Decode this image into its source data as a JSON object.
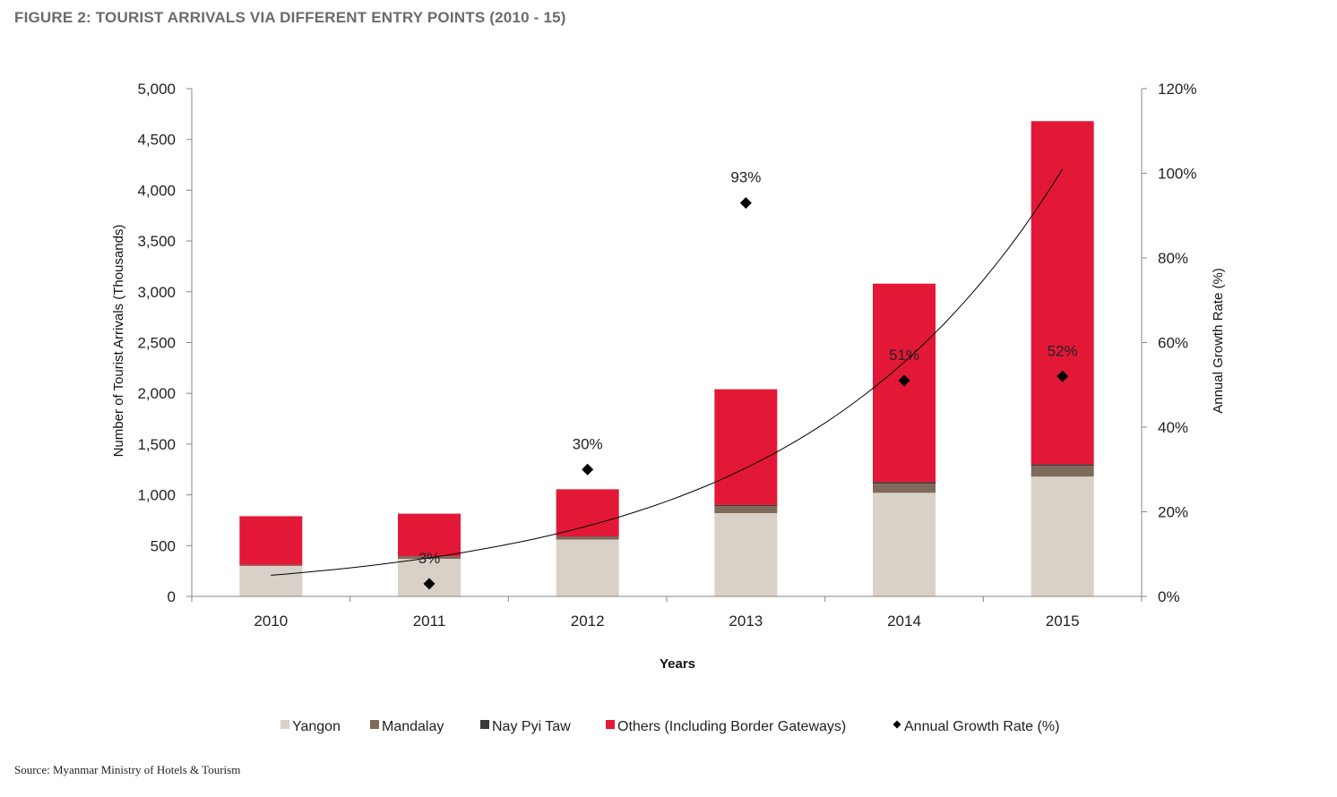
{
  "title": "FIGURE 2: TOURIST ARRIVALS VIA DIFFERENT ENTRY POINTS (2010 - 15)",
  "source": "Source: Myanmar Ministry of Hotels & Tourism",
  "chart_data": {
    "type": "bar",
    "stacked": true,
    "categories": [
      "2010",
      "2011",
      "2012",
      "2013",
      "2014",
      "2015"
    ],
    "xlabel": "Years",
    "ylabel": "Number of Tourist Arrivals (Thousands)",
    "ylabel_right": "Annual Growth Rate (%)",
    "ylim": [
      0,
      5000
    ],
    "ylim_right": [
      0,
      120
    ],
    "yticks": [
      "0",
      "500",
      "1,000",
      "1,500",
      "2,000",
      "2,500",
      "3,000",
      "3,500",
      "4,000",
      "4,500",
      "5,000"
    ],
    "yticks_right": [
      "0%",
      "20%",
      "40%",
      "60%",
      "80%",
      "100%",
      "120%"
    ],
    "grid": false,
    "legend_position": "bottom",
    "series": [
      {
        "name": "Yangon",
        "color": "#d9d1c7",
        "values": [
          300,
          370,
          560,
          820,
          1020,
          1180
        ]
      },
      {
        "name": "Mandalay",
        "color": "#7f6a5a",
        "values": [
          8,
          20,
          25,
          70,
          90,
          105
        ]
      },
      {
        "name": "Nay Pyi Taw",
        "color": "#3a3a3a",
        "values": [
          2,
          5,
          5,
          10,
          15,
          15
        ]
      },
      {
        "name": "Others (Including Border Gateways)",
        "color": "#e31837",
        "values": [
          480,
          420,
          465,
          1140,
          1955,
          3380
        ]
      }
    ],
    "growth": {
      "name": "Annual Growth Rate (%)",
      "color": "#000000",
      "values": [
        null,
        3,
        30,
        93,
        51,
        52
      ],
      "labels": [
        "",
        "3%",
        "30%",
        "93%",
        "51%",
        "52%"
      ]
    },
    "trendline": {
      "type": "exponential",
      "color": "#000000"
    }
  }
}
